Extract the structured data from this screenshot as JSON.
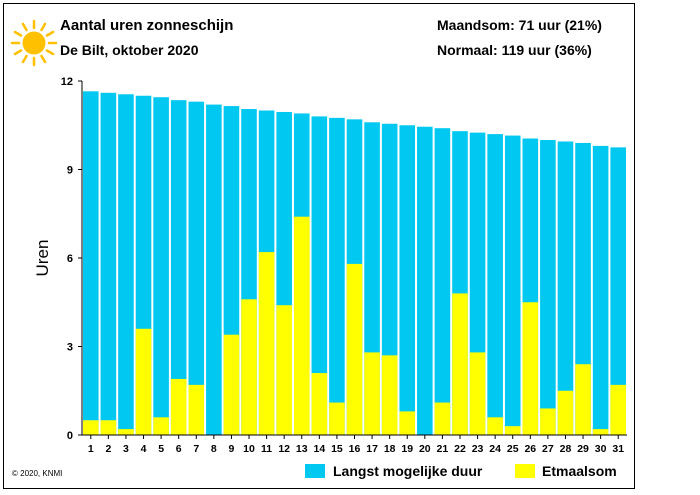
{
  "header": {
    "title": "Aantal uren zonneschijn",
    "subtitle": "De Bilt, oktober 2020",
    "month_sum": "Maandsom: 71 uur (21%)",
    "normal_sum": "Normaal: 119 uur (36%)"
  },
  "footer": {
    "copyright": "© 2020, KNMI"
  },
  "colors": {
    "possible": "#00c8f0",
    "actual": "#ffff00",
    "sun": "#ffc000"
  },
  "icons": {
    "logo": "sun-icon"
  },
  "chart_data": {
    "type": "bar",
    "ylabel": "Uren",
    "xlabel": "",
    "ylim": [
      0,
      12
    ],
    "yticks": [
      "0",
      "3",
      "6",
      "9",
      "12"
    ],
    "categories": [
      "1",
      "2",
      "3",
      "4",
      "5",
      "6",
      "7",
      "8",
      "9",
      "10",
      "11",
      "12",
      "13",
      "14",
      "15",
      "16",
      "17",
      "18",
      "19",
      "20",
      "21",
      "22",
      "23",
      "24",
      "25",
      "26",
      "27",
      "28",
      "29",
      "30",
      "31"
    ],
    "series": [
      {
        "name": "Langst mogelijke duur",
        "values": [
          11.65,
          11.6,
          11.55,
          11.5,
          11.45,
          11.35,
          11.3,
          11.2,
          11.15,
          11.05,
          11.0,
          10.95,
          10.9,
          10.8,
          10.75,
          10.7,
          10.6,
          10.55,
          10.5,
          10.45,
          10.4,
          10.3,
          10.25,
          10.2,
          10.15,
          10.05,
          10.0,
          9.95,
          9.9,
          9.8,
          9.75
        ]
      },
      {
        "name": "Etmaalsom",
        "values": [
          0.5,
          0.5,
          0.2,
          3.6,
          0.6,
          1.9,
          1.7,
          0.0,
          3.4,
          4.6,
          6.2,
          4.4,
          7.4,
          2.1,
          1.1,
          5.8,
          2.8,
          2.7,
          0.8,
          0.0,
          1.1,
          4.8,
          2.8,
          0.6,
          0.3,
          4.5,
          0.9,
          1.5,
          2.4,
          0.2,
          1.7
        ]
      }
    ],
    "grid": false,
    "legend": "bottom"
  }
}
